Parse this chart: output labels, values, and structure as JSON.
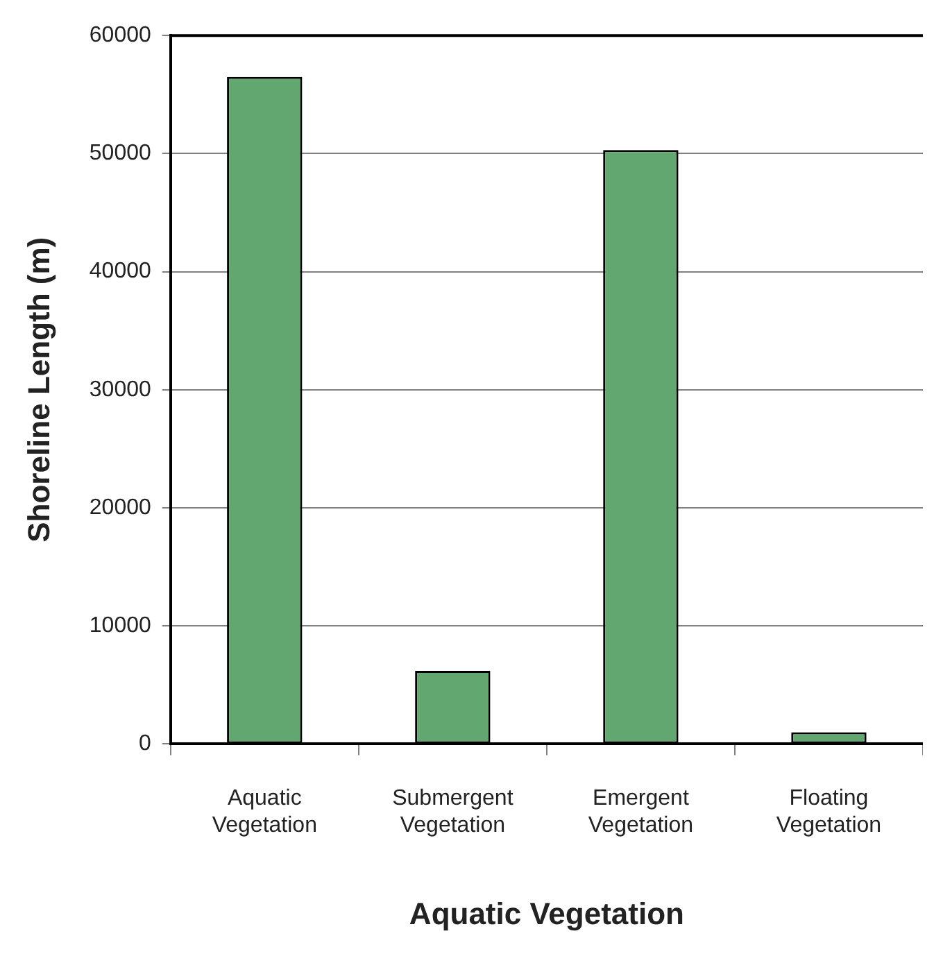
{
  "chart_data": {
    "type": "bar",
    "xlabel": "Aquatic Vegetation",
    "ylabel": "Shoreline Length (m)",
    "categories": [
      "Aquatic Vegetation",
      "Submergent Vegetation",
      "Emergent Vegetation",
      "Floating Vegetation"
    ],
    "values": [
      56500,
      6200,
      50300,
      1000
    ],
    "color": "#62a770",
    "ylim": [
      0,
      60000
    ],
    "yticks": [
      0,
      10000,
      20000,
      30000,
      40000,
      50000,
      60000
    ],
    "grid": "y",
    "legend": false
  }
}
